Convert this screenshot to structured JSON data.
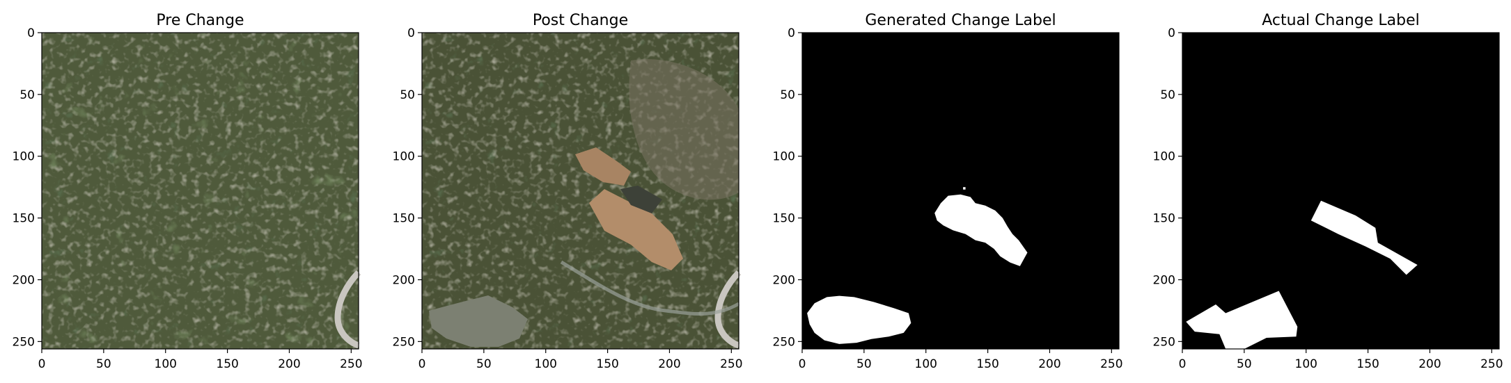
{
  "figure": {
    "panels": [
      {
        "id": "pre",
        "title": "Pre Change",
        "kind": "photo"
      },
      {
        "id": "post",
        "title": "Post Change",
        "kind": "photo"
      },
      {
        "id": "generated",
        "title": "Generated Change Label",
        "kind": "mask"
      },
      {
        "id": "actual",
        "title": "Actual Change Label",
        "kind": "mask"
      }
    ]
  },
  "chart_data": {
    "type": "image-grid",
    "xlim": [
      0,
      256
    ],
    "ylim": [
      256,
      0
    ],
    "xticks": [
      0,
      50,
      100,
      150,
      200,
      250
    ],
    "yticks": [
      0,
      50,
      100,
      150,
      200,
      250
    ],
    "colors": {
      "mask_background": "#000000",
      "mask_foreground": "#ffffff",
      "pre_base": "#4f5a3b",
      "post_base": "#4a5236",
      "roof": "#b38d6a",
      "roof_gray": "#7c8072",
      "road": "#c9c6c0"
    },
    "masks": {
      "generated": [
        [
          [
            107,
            146
          ],
          [
            112,
            138
          ],
          [
            118,
            132
          ],
          [
            128,
            131
          ],
          [
            136,
            133
          ],
          [
            140,
            138
          ],
          [
            148,
            140
          ],
          [
            156,
            144
          ],
          [
            162,
            150
          ],
          [
            166,
            157
          ],
          [
            170,
            163
          ],
          [
            175,
            168
          ],
          [
            182,
            178
          ],
          [
            176,
            189
          ],
          [
            168,
            186
          ],
          [
            160,
            181
          ],
          [
            155,
            175
          ],
          [
            148,
            170
          ],
          [
            140,
            168
          ],
          [
            132,
            163
          ],
          [
            122,
            160
          ],
          [
            114,
            156
          ],
          [
            109,
            152
          ]
        ],
        [
          [
            4,
            227
          ],
          [
            10,
            219
          ],
          [
            20,
            214
          ],
          [
            30,
            213
          ],
          [
            42,
            214
          ],
          [
            58,
            218
          ],
          [
            74,
            223
          ],
          [
            86,
            227
          ],
          [
            88,
            235
          ],
          [
            82,
            243
          ],
          [
            70,
            246
          ],
          [
            56,
            248
          ],
          [
            44,
            251
          ],
          [
            30,
            252
          ],
          [
            18,
            249
          ],
          [
            10,
            243
          ],
          [
            6,
            236
          ]
        ],
        [
          [
            130,
            125
          ],
          [
            132,
            125
          ],
          [
            132,
            127
          ],
          [
            130,
            127
          ]
        ]
      ],
      "actual": [
        [
          [
            104,
            152
          ],
          [
            112,
            136
          ],
          [
            140,
            148
          ],
          [
            156,
            158
          ],
          [
            158,
            170
          ],
          [
            190,
            188
          ],
          [
            181,
            196
          ],
          [
            168,
            183
          ],
          [
            148,
            173
          ],
          [
            126,
            163
          ]
        ],
        [
          [
            3,
            234
          ],
          [
            27,
            220
          ],
          [
            35,
            227
          ],
          [
            78,
            209
          ],
          [
            93,
            238
          ],
          [
            92,
            246
          ],
          [
            68,
            247
          ],
          [
            50,
            256
          ],
          [
            35,
            256
          ],
          [
            30,
            244
          ],
          [
            10,
            242
          ]
        ]
      ]
    }
  }
}
